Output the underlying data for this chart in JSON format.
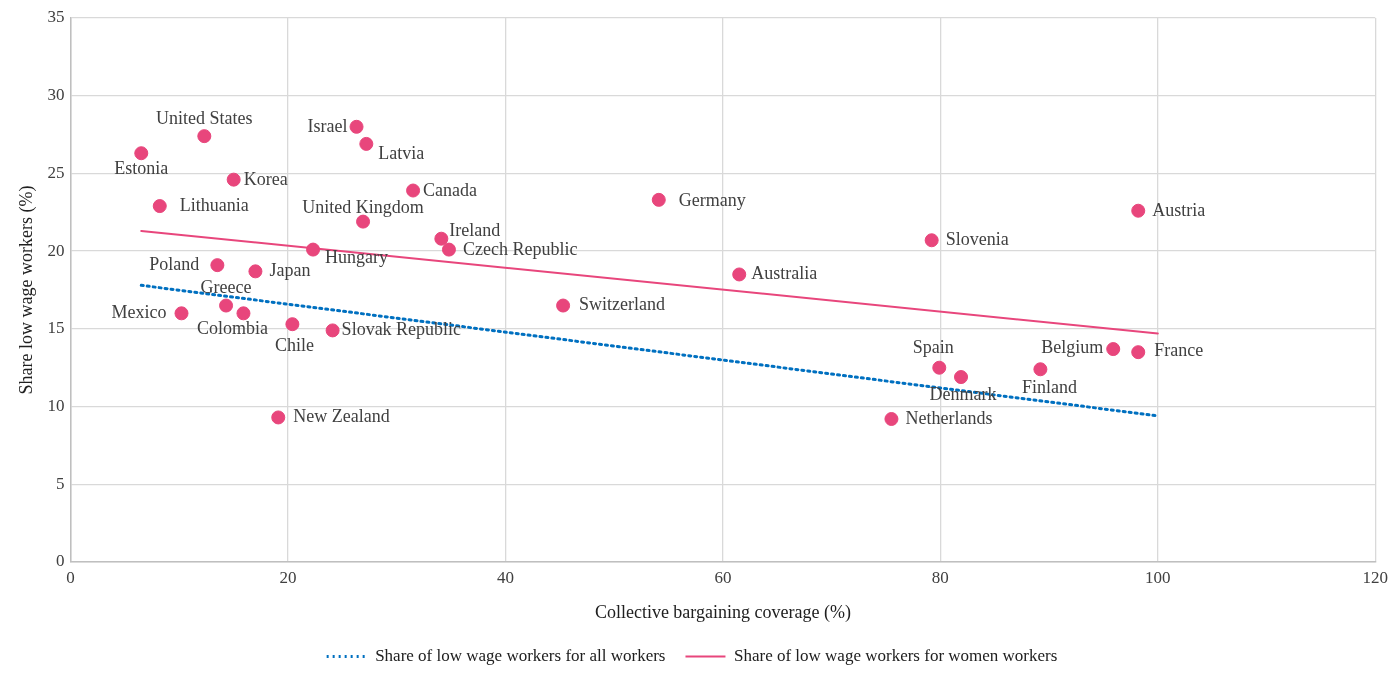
{
  "chart_data": {
    "type": "scatter",
    "xlabel": "Collective bargaining coverage (%)",
    "ylabel": "Share low wage workers (%)",
    "xlim": [
      0,
      120
    ],
    "xticks": [
      0,
      20,
      40,
      60,
      80,
      100,
      120
    ],
    "ylim": [
      0,
      35
    ],
    "yticks": [
      0,
      5,
      10,
      15,
      20,
      25,
      30,
      35
    ],
    "grid": true,
    "legend": "bottom",
    "series": [
      {
        "marker": "circle",
        "color": "#e8467c",
        "x": [
          12.3,
          6.5,
          26.3,
          27.2,
          15.0,
          31.5,
          8.2,
          26.9,
          34.1,
          34.8,
          22.3,
          13.5,
          17.0,
          14.3,
          15.9,
          10.2,
          20.4,
          24.1,
          19.1,
          54.1,
          61.5,
          45.3,
          79.2,
          98.2,
          79.9,
          81.9,
          89.2,
          95.9,
          98.2,
          75.5
        ],
        "values": [
          27.4,
          26.3,
          28.0,
          26.9,
          24.6,
          23.9,
          22.9,
          21.9,
          20.8,
          20.1,
          20.1,
          19.1,
          18.7,
          16.5,
          16.0,
          16.0,
          15.3,
          14.9,
          9.3,
          23.3,
          18.5,
          16.5,
          20.7,
          22.6,
          12.5,
          11.9,
          12.4,
          13.7,
          13.5,
          9.2
        ]
      },
      {
        "type": "line",
        "name": "Share of low wage workers for all workers",
        "color": "#0070c0",
        "line_style": "dotted",
        "x": [
          6.5,
          100
        ],
        "values": [
          17.8,
          9.4
        ]
      },
      {
        "type": "line",
        "name": "Share of low wage workers for women workers",
        "color": "#e8467c",
        "line_style": "solid",
        "x": [
          6.5,
          100
        ],
        "values": [
          21.3,
          14.7
        ]
      }
    ],
    "annotations": [
      {
        "text": "United States",
        "x": 12.3,
        "y": 27.4
      },
      {
        "text": "Estonia",
        "x": 6.5,
        "y": 26.3
      },
      {
        "text": "Israel",
        "x": 26.3,
        "y": 28.0
      },
      {
        "text": "Latvia",
        "x": 27.2,
        "y": 26.9
      },
      {
        "text": "Korea",
        "x": 15.0,
        "y": 24.6
      },
      {
        "text": "Canada",
        "x": 31.5,
        "y": 23.9
      },
      {
        "text": "Lithuania",
        "x": 8.2,
        "y": 22.9
      },
      {
        "text": "United Kingdom",
        "x": 26.9,
        "y": 21.9
      },
      {
        "text": "Ireland",
        "x": 34.1,
        "y": 20.8
      },
      {
        "text": "Czech Republic",
        "x": 34.8,
        "y": 20.1
      },
      {
        "text": "Hungary",
        "x": 22.3,
        "y": 20.1
      },
      {
        "text": "Poland",
        "x": 13.5,
        "y": 19.1
      },
      {
        "text": "Japan",
        "x": 17.0,
        "y": 18.7
      },
      {
        "text": "Greece",
        "x": 14.3,
        "y": 16.5
      },
      {
        "text": "Colombia",
        "x": 15.9,
        "y": 16.0
      },
      {
        "text": "Mexico",
        "x": 10.2,
        "y": 16.0
      },
      {
        "text": "Chile",
        "x": 20.4,
        "y": 15.3
      },
      {
        "text": "Slovak Republic",
        "x": 24.1,
        "y": 14.9
      },
      {
        "text": "New Zealand",
        "x": 19.1,
        "y": 9.3
      },
      {
        "text": "Germany",
        "x": 54.1,
        "y": 23.3
      },
      {
        "text": "Australia",
        "x": 61.5,
        "y": 18.5
      },
      {
        "text": "Switzerland",
        "x": 45.3,
        "y": 16.5
      },
      {
        "text": "Slovenia",
        "x": 79.2,
        "y": 20.7
      },
      {
        "text": "Austria",
        "x": 98.2,
        "y": 22.6
      },
      {
        "text": "Spain",
        "x": 79.9,
        "y": 12.5
      },
      {
        "text": "Denmark",
        "x": 81.9,
        "y": 11.9
      },
      {
        "text": "Finland",
        "x": 89.2,
        "y": 12.4
      },
      {
        "text": "Belgium",
        "x": 95.9,
        "y": 13.7
      },
      {
        "text": "France",
        "x": 98.2,
        "y": 13.5
      },
      {
        "text": "Netherlands",
        "x": 75.5,
        "y": 9.2
      }
    ]
  }
}
